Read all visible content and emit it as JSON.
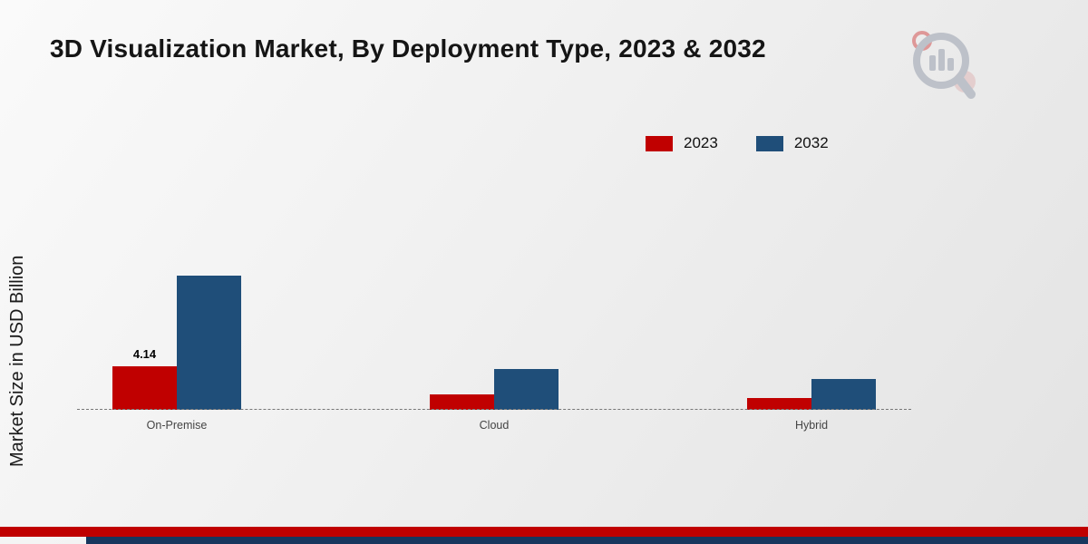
{
  "title": "3D Visualization Market, By Deployment Type, 2023 & 2032",
  "brand": {
    "logo": "magnifier-bar-chart-logo"
  },
  "chart_data": {
    "type": "bar",
    "title": "3D Visualization Market, By Deployment Type, 2023 & 2032",
    "categories": [
      "On-Premise",
      "Cloud",
      "Hybrid"
    ],
    "series": [
      {
        "name": "2023",
        "color": "#c00000",
        "values": [
          4.14,
          1.5,
          1.15
        ]
      },
      {
        "name": "2032",
        "color": "#1f4e79",
        "values": [
          12.8,
          3.9,
          2.9
        ]
      }
    ],
    "labeled_value": {
      "category": "On-Premise",
      "series": "2023",
      "text": "4.14"
    },
    "xlabel": "",
    "ylabel": "Market Size in USD Billion",
    "ylim": [
      0,
      15
    ],
    "grid": false,
    "baseline_style": "dashed",
    "legend_position": "top-right"
  },
  "footer": {
    "red_stripe_color": "#c00000",
    "blue_stripe_color": "#17375e"
  }
}
